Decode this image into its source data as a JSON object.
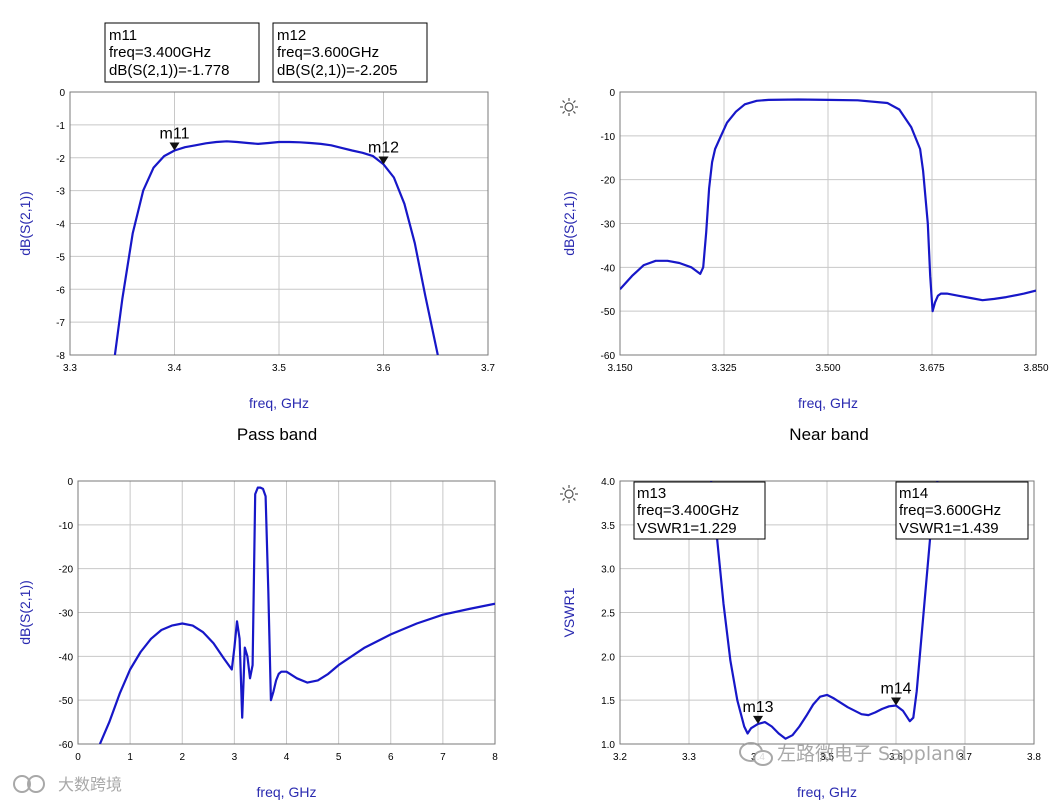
{
  "colors": {
    "trace": "#1717c8",
    "grid": "#c8c8c8",
    "axis_text": "#2a2ab0"
  },
  "watermark": {
    "brand": "左路微电子 Sappland",
    "badge": "大数跨境"
  },
  "chart_data": [
    {
      "type": "line",
      "id": "passband",
      "caption": "Pass band",
      "xlabel": "freq, GHz",
      "ylabel": "dB(S(2,1))",
      "xlim": [
        3.3,
        3.7
      ],
      "ylim": [
        -8,
        0
      ],
      "xticks": [
        3.3,
        3.4,
        3.5,
        3.6,
        3.7
      ],
      "xtick_labels": [
        "3.3",
        "3.4",
        "3.5",
        "3.6",
        "3.7"
      ],
      "yticks": [
        0,
        -1,
        -2,
        -3,
        -4,
        -5,
        -6,
        -7,
        -8
      ],
      "ytick_labels": [
        "0",
        "-1",
        "-2",
        "-3",
        "-4",
        "-5",
        "-6",
        "-7",
        "-8"
      ],
      "grid": true,
      "series": [
        {
          "x": [
            3.343,
            3.35,
            3.36,
            3.37,
            3.38,
            3.39,
            3.4,
            3.41,
            3.42,
            3.43,
            3.44,
            3.45,
            3.46,
            3.47,
            3.48,
            3.49,
            3.5,
            3.51,
            3.52,
            3.53,
            3.54,
            3.55,
            3.56,
            3.57,
            3.58,
            3.59,
            3.6,
            3.61,
            3.62,
            3.63,
            3.64,
            3.652
          ],
          "y": [
            -8.0,
            -6.3,
            -4.3,
            -3.0,
            -2.3,
            -1.95,
            -1.78,
            -1.68,
            -1.62,
            -1.56,
            -1.52,
            -1.5,
            -1.52,
            -1.55,
            -1.58,
            -1.55,
            -1.52,
            -1.52,
            -1.53,
            -1.55,
            -1.58,
            -1.62,
            -1.7,
            -1.78,
            -1.85,
            -1.95,
            -2.2,
            -2.6,
            -3.4,
            -4.6,
            -6.2,
            -8.0
          ]
        }
      ],
      "markers": [
        {
          "name": "m11",
          "x": 3.4,
          "y": -1.778,
          "lines": [
            "m11",
            "freq=3.400GHz",
            "dB(S(2,1))=-1.778"
          ]
        },
        {
          "name": "m12",
          "x": 3.6,
          "y": -2.205,
          "lines": [
            "m12",
            "freq=3.600GHz",
            "dB(S(2,1))=-2.205"
          ]
        }
      ]
    },
    {
      "type": "line",
      "id": "nearband",
      "caption": "Near band",
      "xlabel": "freq, GHz",
      "ylabel": "dB(S(2,1))",
      "xlim": [
        3.15,
        3.85
      ],
      "ylim": [
        -60,
        0
      ],
      "xticks": [
        3.15,
        3.325,
        3.5,
        3.675,
        3.85
      ],
      "xtick_labels": [
        "3.150",
        "3.325",
        "3.500",
        "3.675",
        "3.850"
      ],
      "yticks": [
        0,
        -10,
        -20,
        -30,
        -40,
        -50,
        -60
      ],
      "ytick_labels": [
        "0",
        "-10",
        "-20",
        "-30",
        "-40",
        "-50",
        "-60"
      ],
      "grid": true,
      "series": [
        {
          "x": [
            3.15,
            3.17,
            3.19,
            3.21,
            3.23,
            3.25,
            3.27,
            3.285,
            3.29,
            3.295,
            3.3,
            3.305,
            3.31,
            3.32,
            3.33,
            3.345,
            3.36,
            3.38,
            3.4,
            3.45,
            3.5,
            3.55,
            3.6,
            3.62,
            3.64,
            3.655,
            3.66,
            3.668,
            3.672,
            3.676,
            3.68,
            3.685,
            3.69,
            3.7,
            3.72,
            3.74,
            3.76,
            3.78,
            3.8,
            3.83,
            3.85
          ],
          "y": [
            -45,
            -42,
            -39.5,
            -38.5,
            -38.5,
            -39,
            -40,
            -41.5,
            -40,
            -32,
            -22,
            -16,
            -13,
            -10,
            -7,
            -4.5,
            -2.8,
            -2,
            -1.8,
            -1.7,
            -1.8,
            -1.9,
            -2.5,
            -4,
            -8,
            -13,
            -18,
            -30,
            -42,
            -50,
            -48,
            -46.5,
            -46,
            -46,
            -46.5,
            -47,
            -47.5,
            -47.2,
            -46.8,
            -46,
            -45.3
          ]
        }
      ],
      "markers": []
    },
    {
      "type": "line",
      "id": "wideband",
      "caption": "",
      "xlabel": "freq, GHz",
      "ylabel": "dB(S(2,1))",
      "xlim": [
        0,
        8
      ],
      "ylim": [
        -60,
        0
      ],
      "xticks": [
        0,
        1,
        2,
        3,
        4,
        5,
        6,
        7,
        8
      ],
      "xtick_labels": [
        "0",
        "1",
        "2",
        "3",
        "4",
        "5",
        "6",
        "7",
        "8"
      ],
      "yticks": [
        0,
        -10,
        -20,
        -30,
        -40,
        -50,
        -60
      ],
      "ytick_labels": [
        "0",
        "-10",
        "-20",
        "-30",
        "-40",
        "-50",
        "-60"
      ],
      "grid": true,
      "series": [
        {
          "x": [
            0.42,
            0.6,
            0.8,
            1.0,
            1.2,
            1.4,
            1.6,
            1.8,
            2.0,
            2.2,
            2.4,
            2.6,
            2.8,
            2.95,
            3.0,
            3.05,
            3.1,
            3.15,
            3.2,
            3.25,
            3.3,
            3.35,
            3.4,
            3.45,
            3.5,
            3.55,
            3.6,
            3.65,
            3.7,
            3.75,
            3.8,
            3.85,
            3.9,
            4.0,
            4.2,
            4.4,
            4.6,
            4.8,
            5.0,
            5.5,
            6.0,
            6.5,
            7.0,
            7.5,
            8.0
          ],
          "y": [
            -60,
            -55,
            -48.5,
            -43,
            -39,
            -36,
            -34,
            -33,
            -32.5,
            -33,
            -34.5,
            -37,
            -40.5,
            -43,
            -38,
            -32,
            -36,
            -54,
            -38,
            -40,
            -45,
            -42,
            -3,
            -1.5,
            -1.5,
            -1.8,
            -3.5,
            -25,
            -50,
            -48,
            -45.5,
            -44,
            -43.5,
            -43.5,
            -45,
            -46,
            -45.5,
            -44,
            -42,
            -38,
            -35,
            -32.5,
            -30.5,
            -29.2,
            -28
          ]
        }
      ],
      "markers": []
    },
    {
      "type": "line",
      "id": "vswr",
      "caption": "",
      "xlabel": "freq, GHz",
      "ylabel": "VSWR1",
      "xlim": [
        3.2,
        3.8
      ],
      "ylim": [
        1.0,
        4.0
      ],
      "xticks": [
        3.2,
        3.3,
        3.4,
        3.5,
        3.6,
        3.7,
        3.8
      ],
      "xtick_labels": [
        "3.2",
        "3.3",
        "3.4",
        "3.5",
        "3.6",
        "3.7",
        "3.8"
      ],
      "yticks": [
        4.0,
        3.5,
        3.0,
        2.5,
        2.0,
        1.5,
        1.0
      ],
      "ytick_labels": [
        "4.0",
        "3.5",
        "3.0",
        "2.5",
        "2.0",
        "1.5",
        "1.0"
      ],
      "grid": true,
      "series": [
        {
          "x": [
            3.332,
            3.34,
            3.35,
            3.36,
            3.37,
            3.38,
            3.385,
            3.39,
            3.4,
            3.41,
            3.42,
            3.43,
            3.44,
            3.45,
            3.46,
            3.47,
            3.48,
            3.49,
            3.5,
            3.51,
            3.52,
            3.53,
            3.54,
            3.55,
            3.56,
            3.57,
            3.58,
            3.59,
            3.6,
            3.61,
            3.62,
            3.625,
            3.63,
            3.64,
            3.65,
            3.66
          ],
          "y": [
            4.0,
            3.4,
            2.6,
            1.95,
            1.5,
            1.2,
            1.12,
            1.18,
            1.229,
            1.25,
            1.2,
            1.12,
            1.06,
            1.1,
            1.2,
            1.32,
            1.45,
            1.54,
            1.56,
            1.52,
            1.47,
            1.42,
            1.38,
            1.34,
            1.33,
            1.36,
            1.4,
            1.43,
            1.439,
            1.38,
            1.26,
            1.3,
            1.6,
            2.5,
            3.4,
            4.0
          ]
        }
      ],
      "markers": [
        {
          "name": "m13",
          "x": 3.4,
          "y": 1.229,
          "lines": [
            "m13",
            "freq=3.400GHz",
            "VSWR1=1.229"
          ]
        },
        {
          "name": "m14",
          "x": 3.6,
          "y": 1.439,
          "lines": [
            "m14",
            "freq=3.600GHz",
            "VSWR1=1.439"
          ]
        }
      ]
    }
  ]
}
